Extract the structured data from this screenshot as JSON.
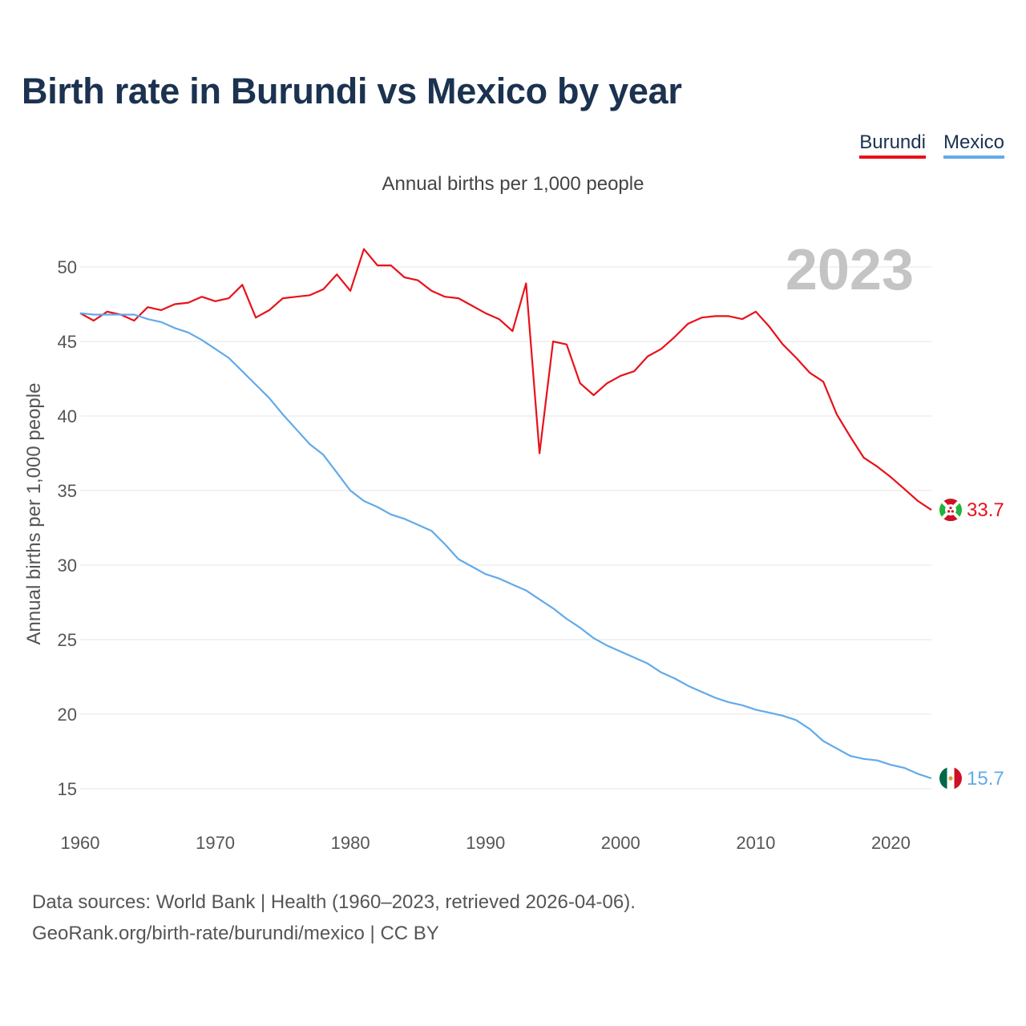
{
  "title": "Birth rate in Burundi vs Mexico by year",
  "subtitle": "Annual births per 1,000 people",
  "legend": [
    {
      "name": "Burundi",
      "color": "#e8111b"
    },
    {
      "name": "Mexico",
      "color": "#62aae9"
    }
  ],
  "source": {
    "line1": "Data sources: World Bank | Health (1960–2023, retrieved 2026-04-06).",
    "line2": "GeoRank.org/birth-rate/burundi/mexico | CC BY"
  },
  "chart_data": {
    "type": "line",
    "title": "Birth rate in Burundi vs Mexico by year",
    "subtitle": "Annual births per 1,000 people",
    "xlabel": "",
    "ylabel": "Annual births per 1,000 people",
    "year_stamp": "2023",
    "xlim": [
      1960,
      2023
    ],
    "ylim": [
      13,
      53
    ],
    "x_ticks": [
      1960,
      1970,
      1980,
      1990,
      2000,
      2010,
      2020
    ],
    "y_ticks": [
      15,
      20,
      25,
      30,
      35,
      40,
      45,
      50
    ],
    "grid": true,
    "legend_position": "top-right",
    "x": [
      1960,
      1961,
      1962,
      1963,
      1964,
      1965,
      1966,
      1967,
      1968,
      1969,
      1970,
      1971,
      1972,
      1973,
      1974,
      1975,
      1976,
      1977,
      1978,
      1979,
      1980,
      1981,
      1982,
      1983,
      1984,
      1985,
      1986,
      1987,
      1988,
      1989,
      1990,
      1991,
      1992,
      1993,
      1994,
      1995,
      1996,
      1997,
      1998,
      1999,
      2000,
      2001,
      2002,
      2003,
      2004,
      2005,
      2006,
      2007,
      2008,
      2009,
      2010,
      2011,
      2012,
      2013,
      2014,
      2015,
      2016,
      2017,
      2018,
      2019,
      2020,
      2021,
      2022,
      2023
    ],
    "series": [
      {
        "name": "Burundi",
        "color": "#e8111b",
        "end_label": "33.7",
        "values": [
          46.9,
          46.4,
          47.0,
          46.8,
          46.4,
          47.3,
          47.1,
          47.5,
          47.6,
          48.0,
          47.7,
          47.9,
          48.8,
          46.6,
          47.1,
          47.9,
          48.0,
          48.1,
          48.5,
          49.5,
          48.4,
          51.2,
          50.1,
          50.1,
          49.3,
          49.1,
          48.4,
          48.0,
          47.9,
          47.4,
          46.9,
          46.5,
          45.7,
          48.9,
          37.5,
          45.0,
          44.8,
          42.2,
          41.4,
          42.2,
          42.7,
          43.0,
          44.0,
          44.5,
          45.3,
          46.2,
          46.6,
          46.7,
          46.7,
          46.5,
          47.0,
          46.0,
          44.8,
          43.9,
          42.9,
          42.3,
          40.1,
          38.6,
          37.2,
          36.6,
          35.9,
          35.1,
          34.3,
          33.7
        ]
      },
      {
        "name": "Mexico",
        "color": "#62aae9",
        "end_label": "15.7",
        "values": [
          46.9,
          46.8,
          46.8,
          46.8,
          46.8,
          46.5,
          46.3,
          45.9,
          45.6,
          45.1,
          44.5,
          43.9,
          43.0,
          42.1,
          41.2,
          40.1,
          39.1,
          38.1,
          37.4,
          36.2,
          35.0,
          34.3,
          33.9,
          33.4,
          33.1,
          32.7,
          32.3,
          31.4,
          30.4,
          29.9,
          29.4,
          29.1,
          28.7,
          28.3,
          27.7,
          27.1,
          26.4,
          25.8,
          25.1,
          24.6,
          24.2,
          23.8,
          23.4,
          22.8,
          22.4,
          21.9,
          21.5,
          21.1,
          20.8,
          20.6,
          20.3,
          20.1,
          19.9,
          19.6,
          19.0,
          18.2,
          17.7,
          17.2,
          17.0,
          16.9,
          16.6,
          16.4,
          16.0,
          15.7
        ]
      }
    ]
  }
}
